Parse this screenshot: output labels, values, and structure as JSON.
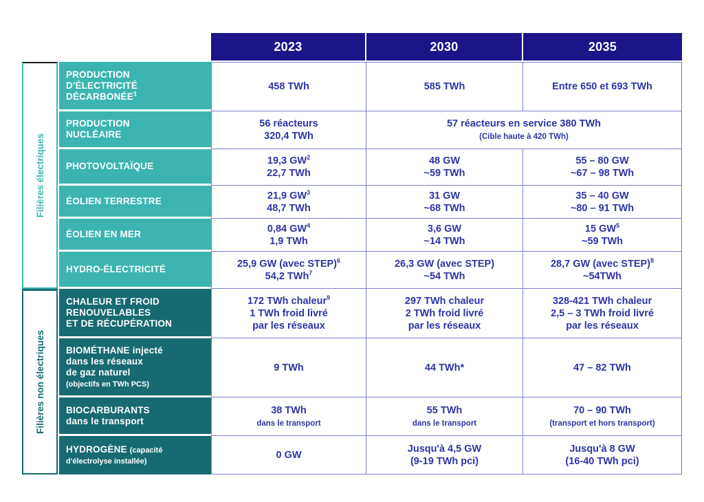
{
  "colors": {
    "header_navy": "#1c1589",
    "teal_electric": "#3cb5b0",
    "teal_nonelectric": "#176b70",
    "data_text_blue": "#2d35a5",
    "grid_border": "#7a7fd0"
  },
  "years": [
    "2023",
    "2030",
    "2035"
  ],
  "sections": {
    "electric": "Filières électriques",
    "nonelectric": "Filières non électriques"
  },
  "rows": [
    {
      "section": "electric",
      "header": [
        [
          {
            "t": "PRODUCTION"
          }
        ],
        [
          {
            "t": "D'ÉLECTRICITÉ"
          }
        ],
        [
          {
            "t": "DÉCARBONÉE",
            "sup": "1"
          }
        ]
      ],
      "cells": [
        {
          "lines": [
            [
              {
                "t": "458 TWh"
              }
            ]
          ]
        },
        {
          "lines": [
            [
              {
                "t": "585 TWh"
              }
            ]
          ]
        },
        {
          "lines": [
            [
              {
                "t": "Entre 650 et 693 TWh"
              }
            ]
          ]
        }
      ]
    },
    {
      "section": "electric",
      "header": [
        [
          {
            "t": "PRODUCTION"
          }
        ],
        [
          {
            "t": "NUCLÉAIRE"
          }
        ]
      ],
      "cells": [
        {
          "lines": [
            [
              {
                "t": "56 réacteurs"
              }
            ],
            [
              {
                "t": "320,4 TWh"
              }
            ]
          ]
        },
        {
          "span": 2,
          "lines": [
            [
              {
                "t": "57 réacteurs en service 380 TWh"
              }
            ],
            [
              {
                "t": "(Cible haute à 420 TWh)",
                "small": true
              }
            ]
          ]
        }
      ]
    },
    {
      "section": "electric",
      "header": [
        [
          {
            "t": "PHOTOVOLTAÏQUE"
          }
        ]
      ],
      "cells": [
        {
          "lines": [
            [
              {
                "t": "19,3 GW",
                "sup": "2"
              }
            ],
            [
              {
                "t": "22,7 TWh"
              }
            ]
          ]
        },
        {
          "lines": [
            [
              {
                "t": "48 GW"
              }
            ],
            [
              {
                "t": "~59 TWh"
              }
            ]
          ]
        },
        {
          "lines": [
            [
              {
                "t": "55 – 80 GW"
              }
            ],
            [
              {
                "t": "~67 – 98 TWh"
              }
            ]
          ]
        }
      ]
    },
    {
      "section": "electric",
      "header": [
        [
          {
            "t": "ÉOLIEN TERRESTRE"
          }
        ]
      ],
      "cells": [
        {
          "lines": [
            [
              {
                "t": "21,9 GW",
                "sup": "3"
              }
            ],
            [
              {
                "t": "48,7 TWh"
              }
            ]
          ]
        },
        {
          "lines": [
            [
              {
                "t": "31 GW"
              }
            ],
            [
              {
                "t": "~68 TWh"
              }
            ]
          ]
        },
        {
          "lines": [
            [
              {
                "t": "35 – 40 GW"
              }
            ],
            [
              {
                "t": "~80 – 91 TWh"
              }
            ]
          ]
        }
      ]
    },
    {
      "section": "electric",
      "header": [
        [
          {
            "t": "ÉOLIEN EN MER"
          }
        ]
      ],
      "cells": [
        {
          "lines": [
            [
              {
                "t": "0,84 GW",
                "sup": "4"
              }
            ],
            [
              {
                "t": "1,9 TWh"
              }
            ]
          ]
        },
        {
          "lines": [
            [
              {
                "t": "3,6 GW"
              }
            ],
            [
              {
                "t": "~14 TWh"
              }
            ]
          ]
        },
        {
          "lines": [
            [
              {
                "t": "15 GW",
                "sup": "5"
              }
            ],
            [
              {
                "t": "~59 TWh"
              }
            ]
          ]
        }
      ]
    },
    {
      "section": "electric",
      "header": [
        [
          {
            "t": "HYDRO-ÉLECTRICITÉ"
          }
        ]
      ],
      "cells": [
        {
          "lines": [
            [
              {
                "t": "25,9 GW (avec STEP)",
                "sup": "6"
              }
            ],
            [
              {
                "t": "54,2 TWh",
                "sup": "7"
              }
            ]
          ]
        },
        {
          "lines": [
            [
              {
                "t": "26,3 GW (avec STEP)"
              }
            ],
            [
              {
                "t": "~54 TWh"
              }
            ]
          ]
        },
        {
          "lines": [
            [
              {
                "t": "28,7 GW (avec STEP)",
                "sup": "8"
              }
            ],
            [
              {
                "t": "~54TWh"
              }
            ]
          ]
        }
      ]
    },
    {
      "section": "nonelectric",
      "header": [
        [
          {
            "t": "CHALEUR ET FROID"
          }
        ],
        [
          {
            "t": "RENOUVELABLES"
          }
        ],
        [
          {
            "t": "ET DE RÉCUPÉRATION"
          }
        ]
      ],
      "cells": [
        {
          "lines": [
            [
              {
                "t": "172 TWh chaleur",
                "sup": "9"
              }
            ],
            [
              {
                "t": "1 TWh froid livré"
              }
            ],
            [
              {
                "t": "par les réseaux"
              }
            ]
          ]
        },
        {
          "lines": [
            [
              {
                "t": "297 TWh chaleur"
              }
            ],
            [
              {
                "t": "2 TWh froid livré"
              }
            ],
            [
              {
                "t": "par les réseaux"
              }
            ]
          ]
        },
        {
          "lines": [
            [
              {
                "t": "328-421 TWh chaleur"
              }
            ],
            [
              {
                "t": "2,5 – 3 TWh froid livré"
              }
            ],
            [
              {
                "t": "par les réseaux"
              }
            ]
          ]
        }
      ]
    },
    {
      "section": "nonelectric",
      "header": [
        [
          {
            "t": "BIOMÉTHANE injecté"
          }
        ],
        [
          {
            "t": "dans les réseaux"
          }
        ],
        [
          {
            "t": "de gaz naturel"
          }
        ],
        [
          {
            "t": "(objectifs en TWh PCS)",
            "small": true
          }
        ]
      ],
      "cells": [
        {
          "lines": [
            [
              {
                "t": "9 TWh"
              }
            ]
          ]
        },
        {
          "lines": [
            [
              {
                "t": "44 TWh*"
              }
            ]
          ]
        },
        {
          "lines": [
            [
              {
                "t": "47 – 82 TWh"
              }
            ]
          ]
        }
      ]
    },
    {
      "section": "nonelectric",
      "header": [
        [
          {
            "t": "BIOCARBURANTS"
          }
        ],
        [
          {
            "t": "dans le transport"
          }
        ]
      ],
      "cells": [
        {
          "lines": [
            [
              {
                "t": "38 TWh"
              }
            ],
            [
              {
                "t": "dans le transport",
                "small": true
              }
            ]
          ]
        },
        {
          "lines": [
            [
              {
                "t": "55 TWh"
              }
            ],
            [
              {
                "t": "dans le transport",
                "small": true
              }
            ]
          ]
        },
        {
          "lines": [
            [
              {
                "t": "70 – 90 TWh"
              }
            ],
            [
              {
                "t": "(transport et hors transport)",
                "small": true
              }
            ]
          ]
        }
      ]
    },
    {
      "section": "nonelectric",
      "header": [
        [
          {
            "t": "HYDROGÈNE "
          },
          {
            "t": "(capacité",
            "small": true
          }
        ],
        [
          {
            "t": "d'électrolyse installée)",
            "small": true
          }
        ]
      ],
      "cells": [
        {
          "lines": [
            [
              {
                "t": "0 GW"
              }
            ]
          ]
        },
        {
          "lines": [
            [
              {
                "t": "Jusqu'à 4,5 GW"
              }
            ],
            [
              {
                "t": "(9-19 TWh pci)"
              }
            ]
          ]
        },
        {
          "lines": [
            [
              {
                "t": "Jusqu'à 8 GW"
              }
            ],
            [
              {
                "t": "(16-40 TWh pci)"
              }
            ]
          ]
        }
      ]
    }
  ]
}
